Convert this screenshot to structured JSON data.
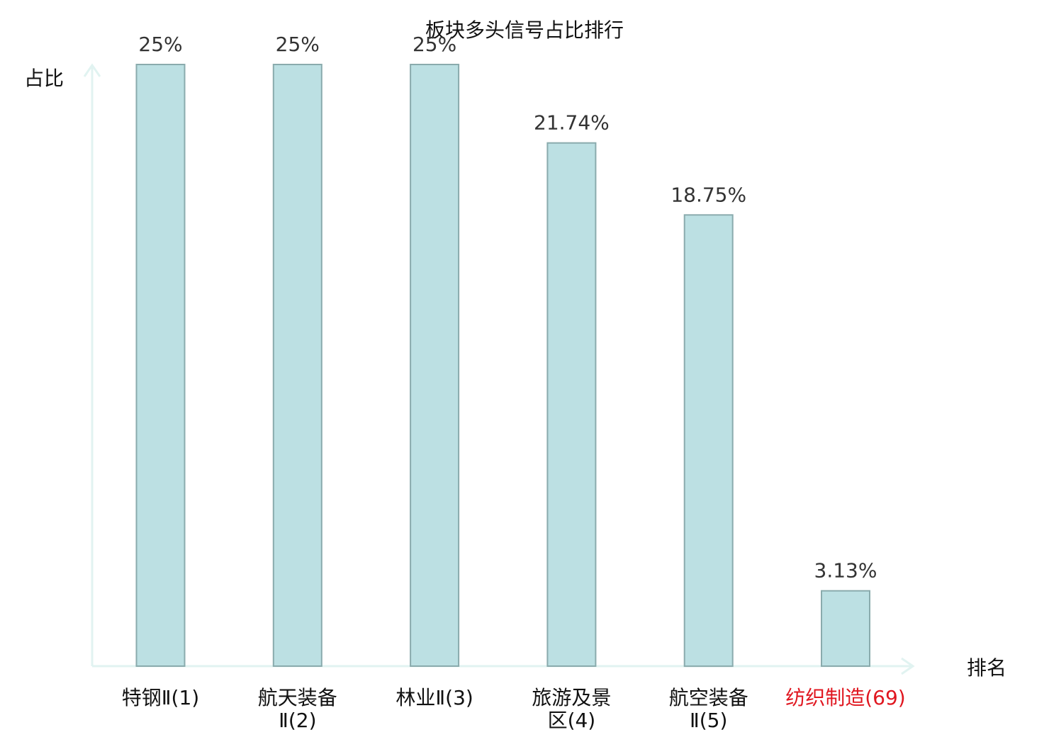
{
  "chart_data": {
    "type": "bar",
    "title": "板块多头信号占比排行",
    "ylabel": "占比",
    "xlabel": "排名",
    "categories": [
      [
        "特钢Ⅱ(1)"
      ],
      [
        "航天装备",
        "Ⅱ(2)"
      ],
      [
        "林业Ⅱ(3)"
      ],
      [
        "旅游及景",
        "区(4)"
      ],
      [
        "航空装备",
        "Ⅱ(5)"
      ],
      [
        "纺织制造(69)"
      ]
    ],
    "values": [
      25,
      25,
      25,
      21.74,
      18.75,
      3.13
    ],
    "value_labels": [
      "25%",
      "25%",
      "25%",
      "21.74%",
      "18.75%",
      "3.13%"
    ],
    "highlight_index": 5,
    "ylim": [
      0,
      25
    ],
    "grid": false,
    "colors": {
      "bar_fill": "#bce0e3",
      "bar_stroke": "#8aabad",
      "axis": "#e1f3f1",
      "text": "#333333",
      "label": "#111111",
      "highlight": "#e0161f"
    }
  }
}
